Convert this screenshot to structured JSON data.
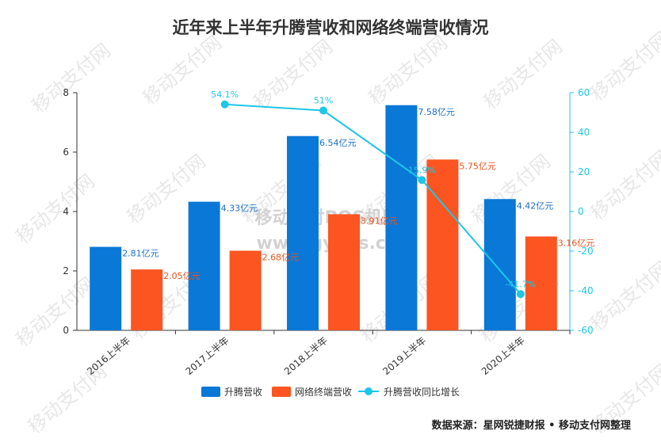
{
  "title": "近年来上半年升腾营收和网络终端营收情况",
  "source_note": "数据来源：星网锐捷财报 • 移动支付网整理",
  "watermark": {
    "repeat_text": "移动支付网",
    "center_line1": "移动支付POS机网",
    "center_line2": "www.gypos.cn"
  },
  "colors": {
    "series_a": "#0a78d7",
    "series_b": "#fc5521",
    "series_c": "#1ec6e8",
    "axis": "#333333",
    "right_axis": "#1ec6e8"
  },
  "chart_data": {
    "type": "bar",
    "title": "近年来上半年升腾营收和网络终端营收情况",
    "categories": [
      "2016上半年",
      "2017上半年",
      "2018上半年",
      "2019上半年",
      "2020上半年"
    ],
    "series": [
      {
        "name": "升腾营收",
        "type": "bar",
        "axis": "left",
        "values": [
          2.81,
          4.33,
          6.54,
          7.58,
          4.42
        ],
        "labels": [
          "2.81亿元",
          "4.33亿元",
          "6.54亿元",
          "7.58亿元",
          "4.42亿元"
        ]
      },
      {
        "name": "网络终端营收",
        "type": "bar",
        "axis": "left",
        "values": [
          2.05,
          2.68,
          3.91,
          5.75,
          3.16
        ],
        "labels": [
          "2.05亿元",
          "2.68亿元",
          "3.91亿元",
          "5.75亿元",
          "3.16亿元"
        ]
      },
      {
        "name": "升腾营收同比增长",
        "type": "line",
        "axis": "right",
        "values": [
          null,
          54.1,
          51,
          15.9,
          -41.7
        ],
        "labels": [
          "",
          "54.1%",
          "51%",
          "15.9%",
          "-41.7%"
        ]
      }
    ],
    "ylim_left": [
      0,
      8
    ],
    "yticks_left": [
      "0",
      "2",
      "4",
      "6",
      "8"
    ],
    "ylim_right": [
      -60,
      60
    ],
    "yticks_right": [
      "-60",
      "-40",
      "-20",
      "0",
      "20",
      "40",
      "60"
    ],
    "legend_position": "bottom",
    "grid": false
  }
}
